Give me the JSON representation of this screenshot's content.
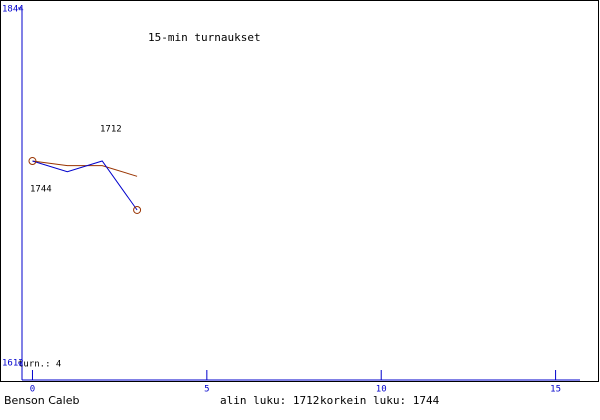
{
  "chart_data": {
    "type": "line",
    "title": "15-min turnaukset",
    "x": [
      0,
      1,
      2,
      3
    ],
    "series": [
      {
        "color": "#0000cc",
        "values": [
          1744,
          1737,
          1744,
          1712
        ]
      },
      {
        "color": "#993300",
        "values": [
          1744,
          1741,
          1741,
          1734
        ]
      }
    ],
    "xlim": [
      -0.3,
      15.7
    ],
    "xticks": [
      0,
      5,
      10,
      15
    ],
    "ylim": [
      1612,
      1844
    ],
    "yticks": [
      1612,
      1844
    ],
    "annotations": [
      "1712",
      "1744"
    ],
    "turns_label": "turn.: 4",
    "player": "Benson Caleb",
    "min_label": "alin luku: 1712",
    "max_label": "korkein luku: 1744"
  }
}
